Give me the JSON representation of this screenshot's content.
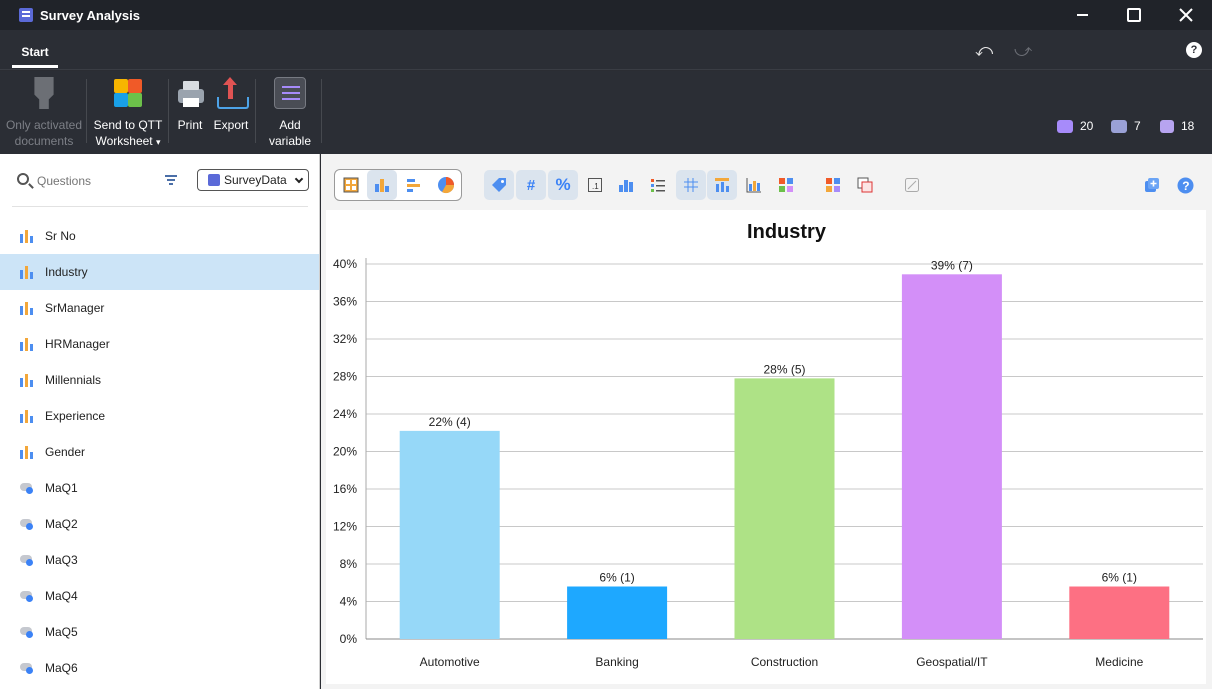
{
  "window": {
    "title": "Survey Analysis"
  },
  "tabs": {
    "start": "Start"
  },
  "ribbon": {
    "only_activated": [
      "Only activated",
      "documents"
    ],
    "send_to_qtt": [
      "Send to QTT",
      "Worksheet"
    ],
    "print": "Print",
    "export": "Export",
    "add_variable": [
      "Add",
      "variable"
    ]
  },
  "stats": {
    "cases": "20",
    "documents": "7",
    "variables": "18"
  },
  "left": {
    "search_placeholder": "Questions",
    "dataset": "SurveyData",
    "items": [
      {
        "label": "Sr No",
        "icon": "bar-chart-icon",
        "selected": false
      },
      {
        "label": "Industry",
        "icon": "bar-chart-icon",
        "selected": true
      },
      {
        "label": "SrManager",
        "icon": "bar-chart-icon",
        "selected": false
      },
      {
        "label": "HRManager",
        "icon": "bar-chart-icon",
        "selected": false
      },
      {
        "label": "Millennials",
        "icon": "bar-chart-icon",
        "selected": false
      },
      {
        "label": "Experience",
        "icon": "bar-chart-icon",
        "selected": false
      },
      {
        "label": "Gender",
        "icon": "bar-chart-icon",
        "selected": false
      },
      {
        "label": "MaQ1",
        "icon": "toggle-icon",
        "selected": false
      },
      {
        "label": "MaQ2",
        "icon": "toggle-icon",
        "selected": false
      },
      {
        "label": "MaQ3",
        "icon": "toggle-icon",
        "selected": false
      },
      {
        "label": "MaQ4",
        "icon": "toggle-icon",
        "selected": false
      },
      {
        "label": "MaQ5",
        "icon": "toggle-icon",
        "selected": false
      },
      {
        "label": "MaQ6",
        "icon": "toggle-icon",
        "selected": false
      }
    ]
  },
  "toolbar": {
    "number_sign": "#",
    "percent_sign": "%"
  },
  "chart_data": {
    "type": "bar",
    "title": "Industry",
    "categories": [
      "Automotive",
      "Banking",
      "Construction",
      "Geospatial/IT",
      "Medicine"
    ],
    "values": [
      22.2,
      5.6,
      27.8,
      38.9,
      5.6
    ],
    "data_labels": [
      "22% (4)",
      "6% (1)",
      "28% (5)",
      "39% (7)",
      "6% (1)"
    ],
    "colors": [
      "#96d8f8",
      "#1ea8ff",
      "#aee286",
      "#d38ff8",
      "#fd7083"
    ],
    "ylim": [
      0,
      40
    ],
    "yticks": [
      "0%",
      "4%",
      "8%",
      "12%",
      "16%",
      "20%",
      "24%",
      "28%",
      "32%",
      "36%",
      "40%"
    ],
    "grid": true,
    "xlabel": "",
    "ylabel": ""
  }
}
